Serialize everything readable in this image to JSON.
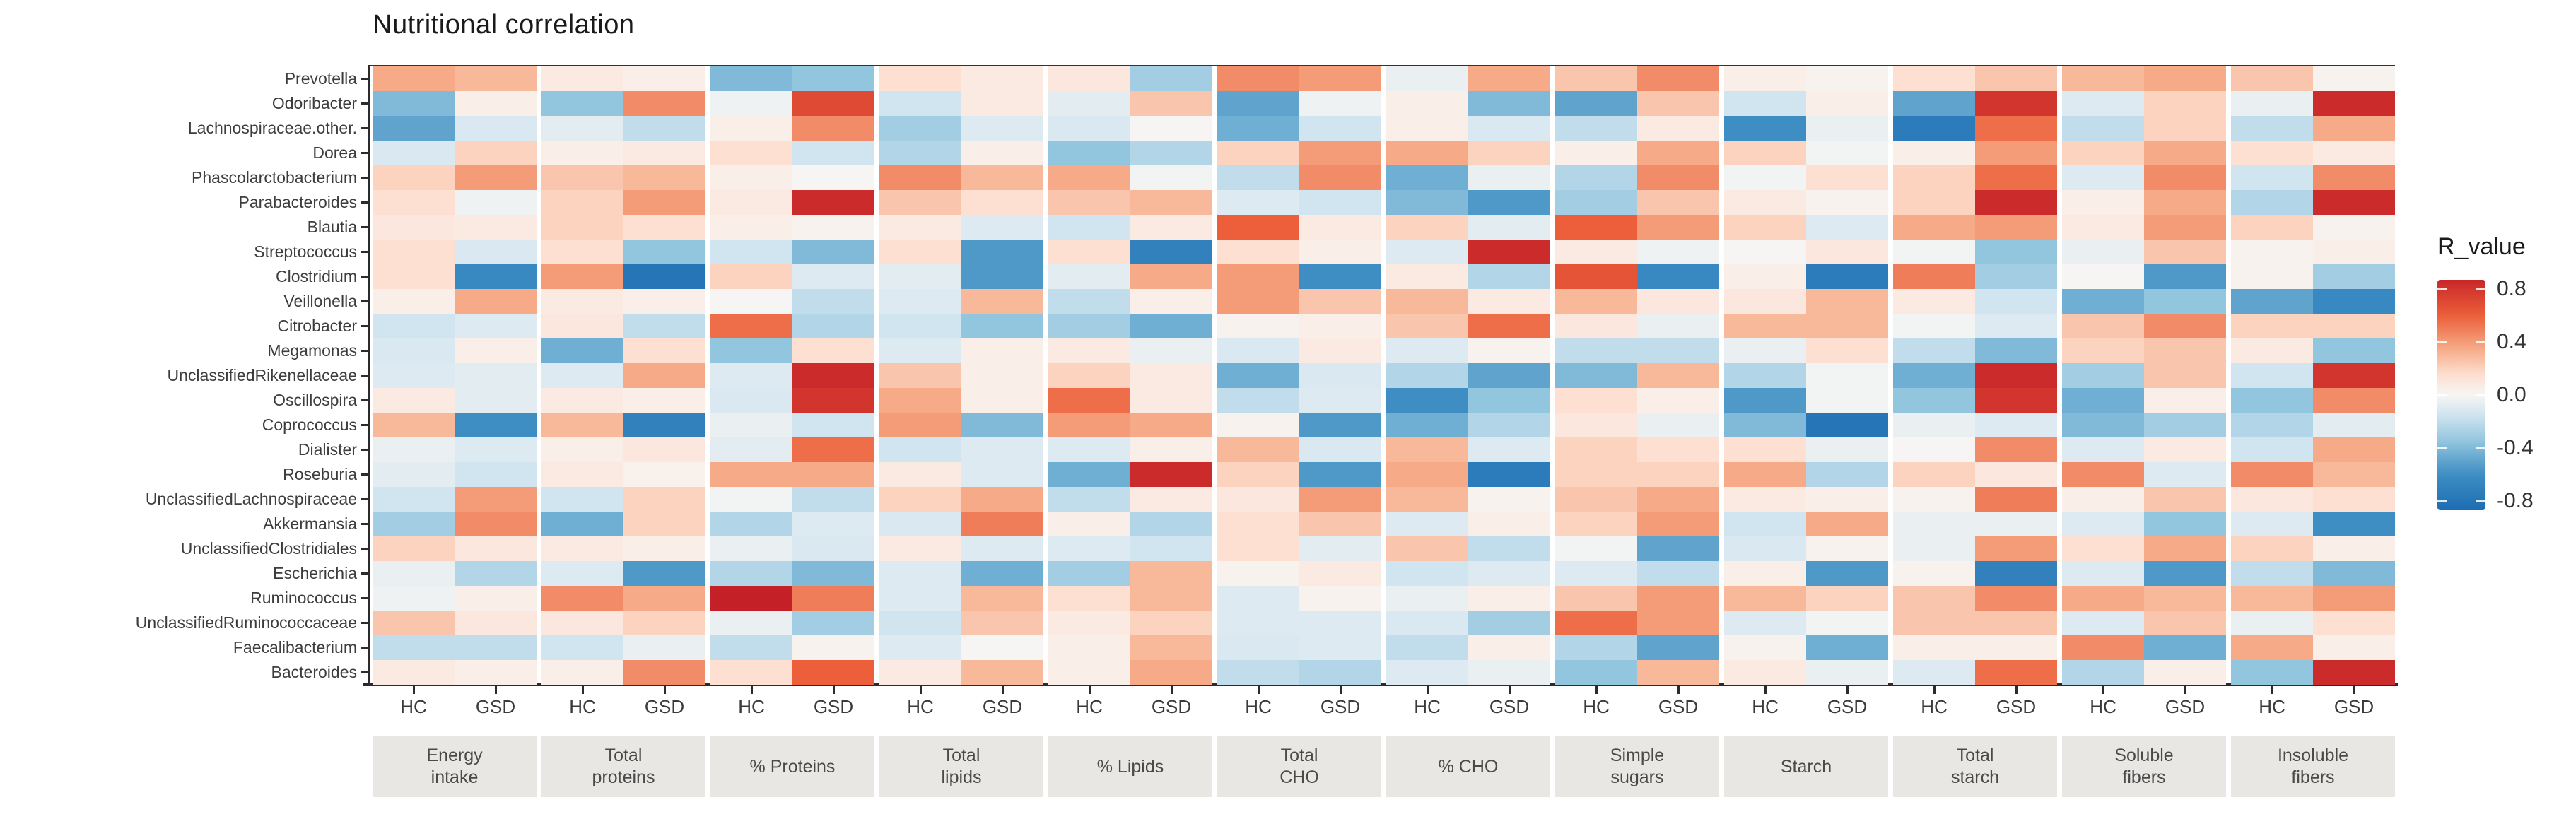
{
  "title": "Nutritional correlation",
  "legend": {
    "title": "R_value",
    "ticks": [
      {
        "label": "0.8",
        "value": 0.8
      },
      {
        "label": "0.4",
        "value": 0.4
      },
      {
        "label": "0.0",
        "value": 0.0
      },
      {
        "label": "-0.4",
        "value": -0.4
      },
      {
        "label": "-0.8",
        "value": -0.8
      }
    ],
    "bar_max": 0.87,
    "bar_min": -0.87
  },
  "chart_data": {
    "type": "heatmap",
    "title": "Nutritional correlation",
    "value_label": "R_value",
    "legend_position": "right",
    "grid": "off",
    "group_labels": [
      "HC",
      "GSD"
    ],
    "facets": [
      {
        "label": "Energy intake",
        "lines": [
          "Energy",
          "intake"
        ]
      },
      {
        "label": "Total proteins",
        "lines": [
          "Total",
          "proteins"
        ]
      },
      {
        "label": "% Proteins",
        "lines": [
          "% Proteins"
        ]
      },
      {
        "label": "Total lipids",
        "lines": [
          "Total",
          "lipids"
        ]
      },
      {
        "label": "% Lipids",
        "lines": [
          "% Lipids"
        ]
      },
      {
        "label": "Total CHO",
        "lines": [
          "Total",
          "CHO"
        ]
      },
      {
        "label": "% CHO",
        "lines": [
          "% CHO"
        ]
      },
      {
        "label": "Simple sugars",
        "lines": [
          "Simple",
          "sugars"
        ]
      },
      {
        "label": "Starch",
        "lines": [
          "Starch"
        ]
      },
      {
        "label": "Total starch",
        "lines": [
          "Total",
          "starch"
        ]
      },
      {
        "label": "Soluble fibers",
        "lines": [
          "Soluble",
          "fibers"
        ]
      },
      {
        "label": "Insoluble fibers",
        "lines": [
          "Insoluble",
          "fibers"
        ]
      }
    ],
    "rows": [
      "Prevotella",
      "Odoribacter",
      "Lachnospiraceae.other.",
      "Dorea",
      "Phascolarctobacterium",
      "Parabacteroides",
      "Blautia",
      "Streptococcus",
      "Clostridium",
      "Veillonella",
      "Citrobacter",
      "Megamonas",
      "UnclassifiedRikenellaceae",
      "Oscillospira",
      "Coprococcus",
      "Dialister",
      "Roseburia",
      "UnclassifiedLachnospiraceae",
      "Akkermansia",
      "UnclassifiedClostridiales",
      "Escherichia",
      "Ruminococcus",
      "UnclassifiedRuminococcaceae",
      "Faecalibacterium",
      "Bacteroides"
    ],
    "color_scale": {
      "type": "diverging",
      "stops": [
        {
          "v": -0.9,
          "rgb": [
            26,
            104,
            176
          ]
        },
        {
          "v": -0.6,
          "rgb": [
            62,
            142,
            196
          ]
        },
        {
          "v": -0.35,
          "rgb": [
            146,
            197,
            222
          ]
        },
        {
          "v": -0.15,
          "rgb": [
            209,
            229,
            240
          ]
        },
        {
          "v": 0.0,
          "rgb": [
            247,
            245,
            243
          ]
        },
        {
          "v": 0.15,
          "rgb": [
            253,
            224,
            210
          ]
        },
        {
          "v": 0.35,
          "rgb": [
            246,
            170,
            135
          ]
        },
        {
          "v": 0.6,
          "rgb": [
            236,
            95,
            58
          ]
        },
        {
          "v": 0.9,
          "rgb": [
            196,
            32,
            40
          ]
        }
      ]
    },
    "values": [
      [
        0.35,
        0.3,
        0.08,
        0.05,
        -0.4,
        -0.35,
        0.15,
        0.08,
        0.1,
        -0.3,
        0.45,
        0.4,
        -0.05,
        0.35,
        0.25,
        0.45,
        0.05,
        0.02,
        0.15,
        0.25,
        0.3,
        0.35,
        0.25,
        0.02
      ],
      [
        -0.4,
        0.05,
        -0.35,
        0.45,
        -0.03,
        0.7,
        -0.15,
        0.08,
        -0.08,
        0.25,
        -0.5,
        -0.03,
        0.05,
        -0.4,
        -0.5,
        0.25,
        -0.15,
        0.05,
        -0.5,
        0.8,
        -0.1,
        0.2,
        -0.05,
        0.85
      ],
      [
        -0.5,
        -0.12,
        -0.08,
        -0.2,
        0.05,
        0.45,
        -0.3,
        -0.1,
        -0.12,
        0.0,
        -0.45,
        -0.15,
        0.05,
        -0.12,
        -0.2,
        0.08,
        -0.6,
        -0.05,
        -0.75,
        0.55,
        -0.2,
        0.2,
        -0.2,
        0.35
      ],
      [
        -0.12,
        0.2,
        0.05,
        0.08,
        0.15,
        -0.15,
        -0.25,
        0.05,
        -0.35,
        -0.25,
        0.2,
        0.4,
        0.35,
        0.2,
        0.05,
        0.35,
        0.2,
        -0.02,
        0.05,
        0.4,
        0.2,
        0.35,
        0.15,
        0.08
      ],
      [
        0.2,
        0.4,
        0.25,
        0.3,
        0.05,
        0.0,
        0.45,
        0.3,
        0.35,
        -0.02,
        -0.2,
        0.45,
        -0.45,
        -0.05,
        -0.25,
        0.45,
        -0.02,
        0.15,
        0.2,
        0.55,
        -0.1,
        0.45,
        -0.15,
        0.45
      ],
      [
        0.15,
        -0.03,
        0.2,
        0.4,
        0.08,
        0.85,
        0.25,
        0.15,
        0.25,
        0.3,
        -0.1,
        -0.15,
        -0.4,
        -0.55,
        -0.3,
        0.25,
        0.08,
        0.02,
        0.2,
        0.85,
        0.05,
        0.35,
        -0.25,
        0.85
      ],
      [
        0.1,
        0.08,
        0.2,
        0.15,
        0.05,
        0.02,
        0.08,
        -0.1,
        -0.15,
        0.08,
        0.6,
        0.08,
        0.2,
        -0.08,
        0.6,
        0.4,
        0.2,
        -0.1,
        0.35,
        0.4,
        0.08,
        0.4,
        0.2,
        0.02
      ],
      [
        0.15,
        -0.12,
        0.15,
        -0.35,
        -0.15,
        -0.4,
        0.15,
        -0.55,
        0.15,
        -0.7,
        0.15,
        0.05,
        -0.1,
        0.85,
        0.08,
        -0.03,
        0.0,
        0.1,
        -0.02,
        -0.35,
        -0.05,
        0.25,
        0.02,
        0.05
      ],
      [
        0.15,
        -0.65,
        0.4,
        -0.8,
        0.2,
        -0.1,
        -0.08,
        -0.55,
        -0.08,
        0.35,
        0.4,
        -0.6,
        0.08,
        -0.25,
        0.65,
        -0.65,
        0.05,
        -0.75,
        0.5,
        -0.3,
        0.0,
        -0.55,
        0.02,
        -0.3
      ],
      [
        0.05,
        0.35,
        0.08,
        0.05,
        0.0,
        -0.2,
        -0.1,
        0.3,
        -0.2,
        0.05,
        0.4,
        0.25,
        0.3,
        0.08,
        0.3,
        0.1,
        0.1,
        0.3,
        0.08,
        -0.15,
        -0.45,
        -0.35,
        -0.5,
        -0.65
      ],
      [
        -0.15,
        -0.1,
        0.1,
        -0.2,
        0.55,
        -0.25,
        -0.15,
        -0.35,
        -0.3,
        -0.45,
        0.02,
        0.05,
        0.25,
        0.55,
        0.1,
        -0.05,
        0.3,
        0.3,
        -0.02,
        -0.1,
        0.25,
        0.45,
        0.2,
        0.2
      ],
      [
        -0.12,
        0.05,
        -0.45,
        0.15,
        -0.35,
        0.15,
        -0.1,
        0.05,
        0.08,
        -0.05,
        -0.12,
        0.08,
        -0.1,
        0.02,
        -0.2,
        -0.2,
        -0.05,
        0.15,
        -0.2,
        -0.4,
        0.2,
        0.25,
        0.08,
        -0.35
      ],
      [
        -0.1,
        -0.08,
        -0.1,
        0.35,
        -0.1,
        0.85,
        0.25,
        0.05,
        0.2,
        0.08,
        -0.45,
        -0.12,
        -0.25,
        -0.5,
        -0.4,
        0.3,
        -0.25,
        -0.02,
        -0.45,
        0.85,
        -0.3,
        0.25,
        -0.15,
        0.8
      ],
      [
        0.08,
        -0.08,
        0.08,
        0.05,
        -0.12,
        0.8,
        0.35,
        0.05,
        0.55,
        0.08,
        -0.2,
        -0.1,
        -0.6,
        -0.35,
        0.15,
        0.05,
        -0.55,
        -0.02,
        -0.35,
        0.8,
        -0.45,
        0.05,
        -0.35,
        0.45
      ],
      [
        0.3,
        -0.6,
        0.3,
        -0.7,
        -0.05,
        -0.15,
        0.4,
        -0.4,
        0.4,
        0.35,
        0.02,
        -0.55,
        -0.45,
        -0.25,
        0.1,
        -0.05,
        -0.4,
        -0.8,
        -0.05,
        -0.1,
        -0.4,
        -0.3,
        -0.25,
        -0.08
      ],
      [
        -0.05,
        -0.1,
        0.05,
        0.1,
        -0.08,
        0.55,
        -0.15,
        -0.1,
        -0.1,
        0.05,
        0.3,
        -0.12,
        0.3,
        -0.1,
        0.2,
        0.15,
        0.15,
        -0.05,
        0.0,
        0.45,
        -0.1,
        0.08,
        -0.15,
        0.35
      ],
      [
        -0.08,
        -0.15,
        0.08,
        0.03,
        0.35,
        0.35,
        0.08,
        -0.1,
        -0.45,
        0.85,
        0.2,
        -0.55,
        0.35,
        -0.75,
        0.2,
        0.2,
        0.35,
        -0.25,
        0.2,
        0.1,
        0.45,
        -0.1,
        0.45,
        0.3
      ],
      [
        -0.15,
        0.4,
        -0.15,
        0.2,
        -0.02,
        -0.2,
        0.2,
        0.35,
        -0.2,
        0.08,
        0.1,
        0.4,
        0.3,
        0.02,
        0.25,
        0.35,
        0.08,
        0.05,
        0.02,
        0.5,
        0.05,
        0.25,
        0.1,
        0.15
      ],
      [
        -0.3,
        0.45,
        -0.45,
        0.2,
        -0.25,
        -0.1,
        -0.12,
        0.5,
        0.05,
        -0.25,
        0.15,
        0.25,
        -0.1,
        0.05,
        0.2,
        0.4,
        -0.15,
        0.35,
        -0.05,
        -0.05,
        -0.1,
        -0.35,
        -0.1,
        -0.6
      ],
      [
        0.2,
        0.1,
        0.08,
        0.05,
        -0.05,
        -0.12,
        0.08,
        -0.1,
        -0.1,
        -0.15,
        0.15,
        -0.08,
        0.25,
        -0.2,
        -0.02,
        -0.5,
        -0.12,
        0.02,
        -0.05,
        0.4,
        0.15,
        0.35,
        0.2,
        0.05
      ],
      [
        -0.05,
        -0.25,
        -0.1,
        -0.55,
        -0.25,
        -0.4,
        -0.1,
        -0.45,
        -0.3,
        0.3,
        0.02,
        0.08,
        -0.15,
        -0.1,
        -0.1,
        -0.2,
        0.05,
        -0.55,
        0.02,
        -0.7,
        -0.1,
        -0.55,
        -0.2,
        -0.4
      ],
      [
        -0.03,
        0.05,
        0.45,
        0.35,
        0.9,
        0.5,
        -0.1,
        0.3,
        0.15,
        0.3,
        -0.1,
        0.02,
        -0.05,
        0.05,
        0.25,
        0.4,
        0.3,
        0.2,
        0.25,
        0.45,
        0.35,
        0.3,
        0.3,
        0.4
      ],
      [
        0.25,
        0.1,
        0.1,
        0.2,
        -0.05,
        -0.3,
        -0.15,
        0.25,
        0.08,
        0.2,
        -0.1,
        -0.1,
        -0.12,
        -0.3,
        0.55,
        0.4,
        -0.1,
        -0.02,
        0.25,
        0.25,
        -0.1,
        0.25,
        -0.05,
        0.15
      ],
      [
        -0.2,
        -0.2,
        -0.15,
        -0.05,
        -0.2,
        0.02,
        -0.1,
        0.0,
        0.05,
        0.3,
        -0.12,
        -0.1,
        -0.2,
        0.05,
        -0.25,
        -0.5,
        0.02,
        -0.45,
        0.05,
        0.05,
        0.45,
        -0.45,
        0.35,
        0.05
      ],
      [
        0.08,
        0.05,
        0.05,
        0.45,
        0.15,
        0.6,
        0.08,
        0.3,
        0.05,
        0.35,
        -0.2,
        -0.25,
        -0.1,
        -0.05,
        -0.35,
        0.3,
        0.08,
        -0.05,
        -0.1,
        0.55,
        -0.25,
        0.05,
        -0.35,
        0.85
      ]
    ]
  }
}
